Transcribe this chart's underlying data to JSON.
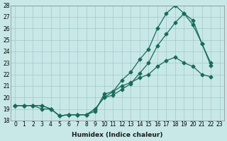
{
  "xlabel": "Humidex (Indice chaleur)",
  "ylabel": "",
  "xlim": [
    -0.5,
    23.5
  ],
  "ylim": [
    18,
    28
  ],
  "yticks": [
    18,
    19,
    20,
    21,
    22,
    23,
    24,
    25,
    26,
    27,
    28
  ],
  "xticks": [
    0,
    1,
    2,
    3,
    4,
    5,
    6,
    7,
    8,
    9,
    10,
    11,
    12,
    13,
    14,
    15,
    16,
    17,
    18,
    19,
    20,
    21,
    22,
    23
  ],
  "background_color": "#c8e8e8",
  "grid_color": "#a0c8c8",
  "line_color": "#1a6b5a",
  "series": {
    "max": {
      "x": [
        0,
        1,
        2,
        3,
        4,
        5,
        6,
        7,
        8,
        9,
        10,
        11,
        12,
        13,
        14,
        15,
        16,
        17,
        18,
        19,
        20,
        21,
        22,
        23
      ],
      "y": [
        19.3,
        19.3,
        19.3,
        19.3,
        19.0,
        18.4,
        18.5,
        18.5,
        18.5,
        19.0,
        20.0,
        20.5,
        21.5,
        22.2,
        23.3,
        24.2,
        26.0,
        27.3,
        28.0,
        27.3,
        26.7,
        24.7,
        23.0,
        null
      ]
    },
    "min": {
      "x": [
        0,
        1,
        2,
        3,
        4,
        5,
        6,
        7,
        8,
        9,
        10,
        11,
        12,
        13,
        14,
        15,
        16,
        17,
        18,
        19,
        20,
        21,
        22,
        23
      ],
      "y": [
        19.3,
        19.3,
        19.3,
        19.0,
        19.0,
        18.4,
        18.5,
        18.5,
        18.5,
        18.8,
        20.3,
        20.5,
        21.0,
        21.3,
        21.7,
        22.0,
        22.7,
        23.2,
        23.5,
        23.0,
        22.7,
        22.0,
        21.8,
        null
      ]
    },
    "mean": {
      "x": [
        0,
        1,
        2,
        3,
        4,
        5,
        6,
        7,
        8,
        9,
        10,
        11,
        12,
        13,
        14,
        15,
        16,
        17,
        18,
        19,
        20,
        21,
        22,
        23
      ],
      "y": [
        19.3,
        19.3,
        19.3,
        19.3,
        19.0,
        18.4,
        18.5,
        18.5,
        18.5,
        19.0,
        20.0,
        20.2,
        20.7,
        21.2,
        22.1,
        23.0,
        24.5,
        25.5,
        26.5,
        27.3,
        26.3,
        24.7,
        22.8,
        null
      ]
    }
  }
}
